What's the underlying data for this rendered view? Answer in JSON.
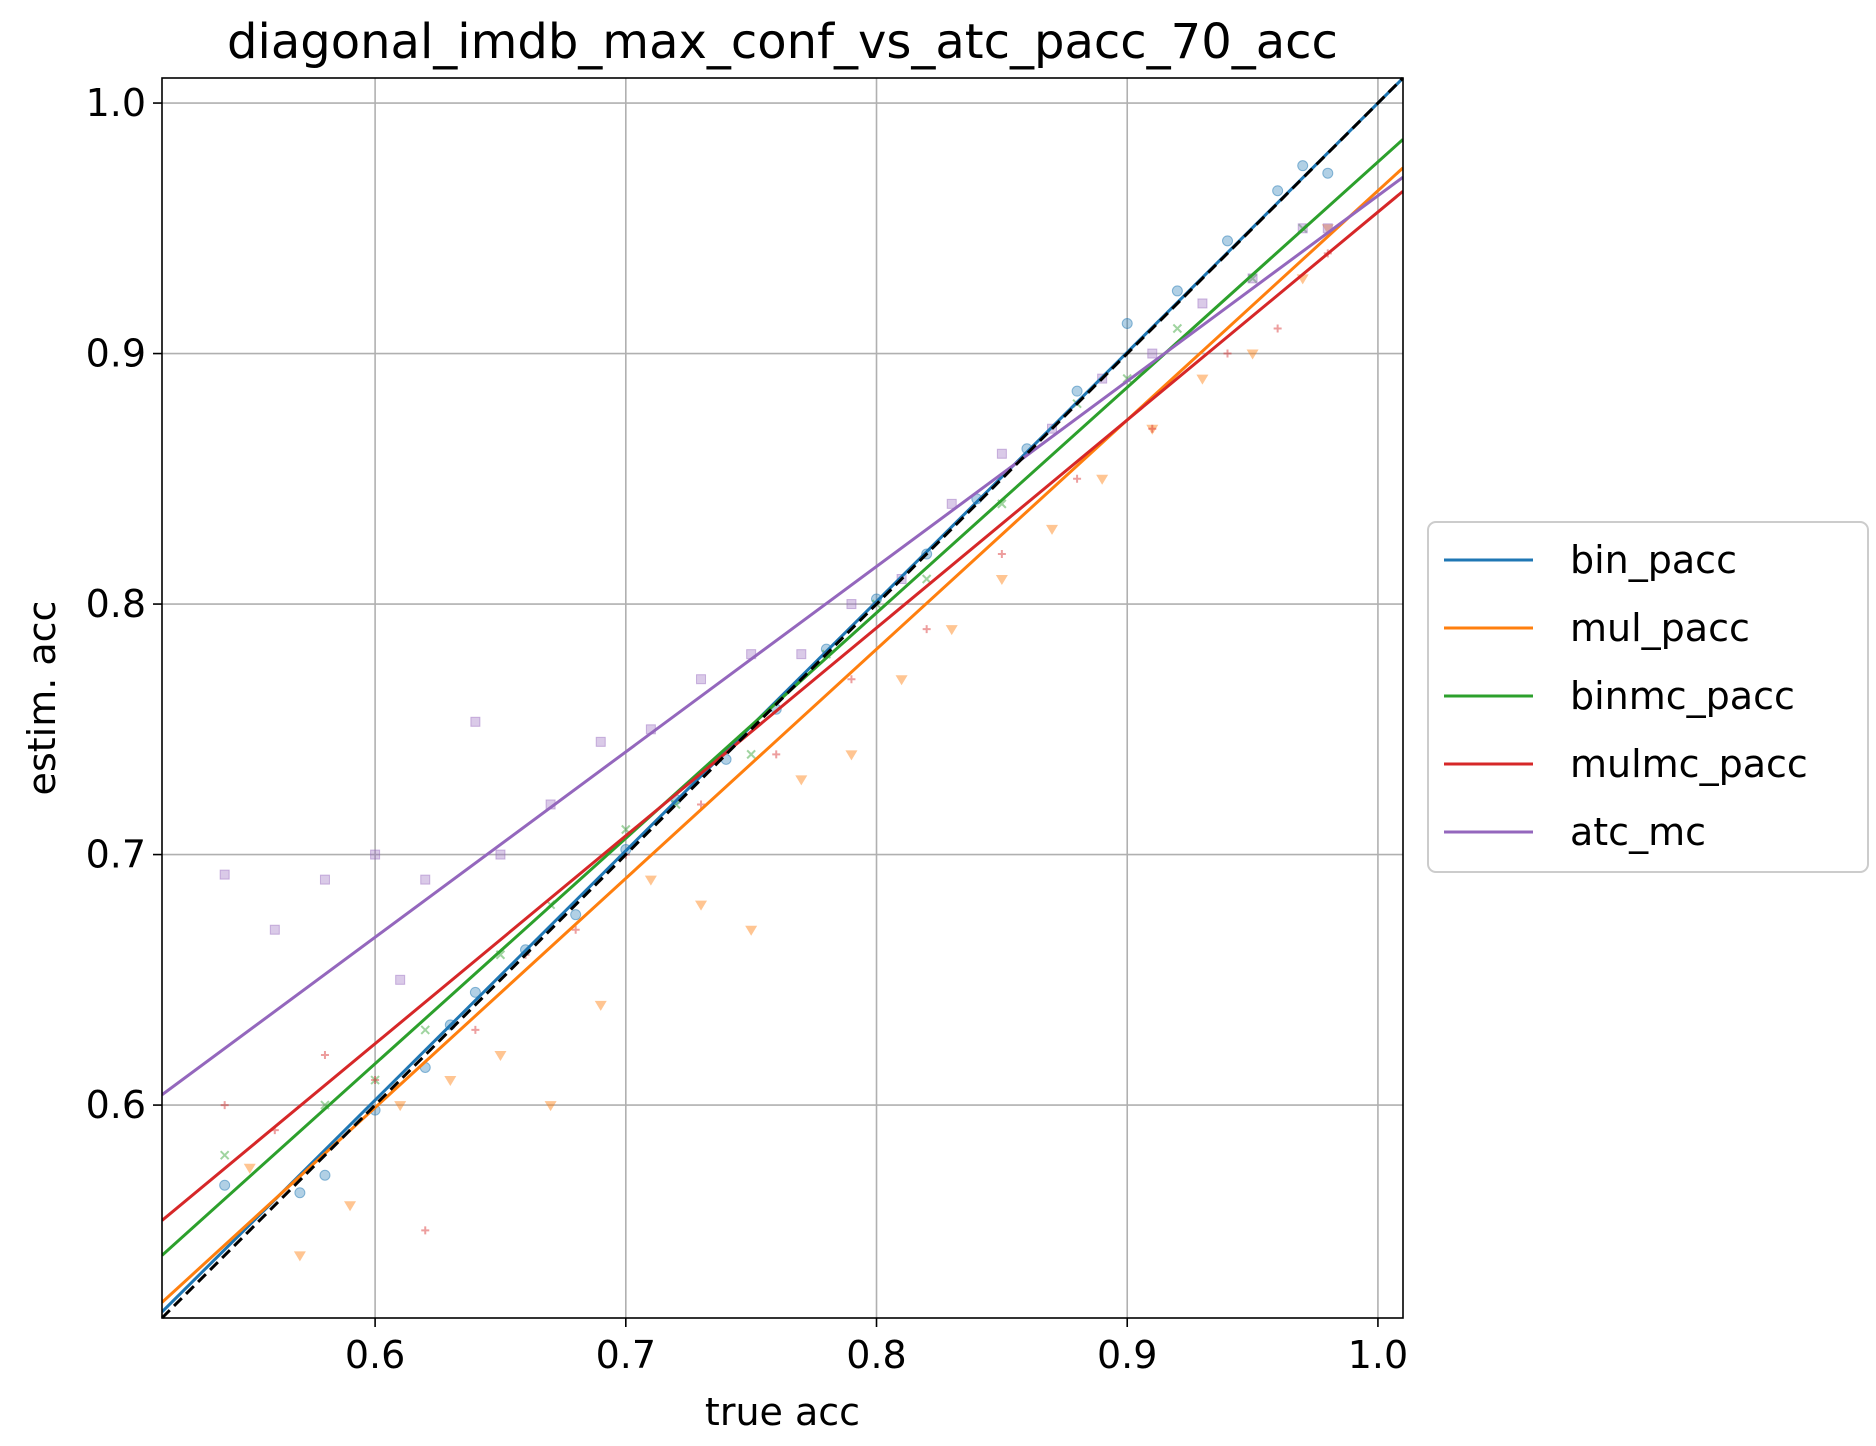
{
  "chart_data": {
    "type": "scatter",
    "title": "diagonal_imdb_max_conf_vs_atc_pacc_70_acc",
    "xlabel": "true acc",
    "ylabel": "estim. acc",
    "xlim": [
      0.515,
      1.01
    ],
    "ylim": [
      0.515,
      1.01
    ],
    "xticks": [
      "0.6",
      "0.7",
      "0.8",
      "0.9",
      "1.0"
    ],
    "yticks": [
      "0.6",
      "0.7",
      "0.8",
      "0.9",
      "1.0"
    ],
    "grid": true,
    "legend_position": "right-outside",
    "diagonal": {
      "style": "dashed",
      "color": "#000000",
      "from": [
        0.515,
        0.515
      ],
      "to": [
        1.01,
        1.01
      ]
    },
    "series": [
      {
        "name": "bin_pacc",
        "color": "#1f77b4",
        "marker": "circle",
        "fit": {
          "slope": 0.995,
          "intercept": 0.005
        },
        "points": [
          [
            0.54,
            0.568
          ],
          [
            0.57,
            0.565
          ],
          [
            0.58,
            0.572
          ],
          [
            0.6,
            0.598
          ],
          [
            0.62,
            0.615
          ],
          [
            0.63,
            0.632
          ],
          [
            0.64,
            0.645
          ],
          [
            0.66,
            0.662
          ],
          [
            0.68,
            0.676
          ],
          [
            0.7,
            0.702
          ],
          [
            0.72,
            0.722
          ],
          [
            0.74,
            0.738
          ],
          [
            0.76,
            0.758
          ],
          [
            0.78,
            0.782
          ],
          [
            0.8,
            0.802
          ],
          [
            0.82,
            0.82
          ],
          [
            0.84,
            0.842
          ],
          [
            0.86,
            0.862
          ],
          [
            0.88,
            0.885
          ],
          [
            0.9,
            0.912
          ],
          [
            0.92,
            0.925
          ],
          [
            0.94,
            0.945
          ],
          [
            0.96,
            0.965
          ],
          [
            0.97,
            0.975
          ],
          [
            0.98,
            0.972
          ]
        ]
      },
      {
        "name": "mul_pacc",
        "color": "#ff7f0e",
        "marker": "triangle-down",
        "fit": {
          "slope": 0.915,
          "intercept": 0.05
        },
        "points": [
          [
            0.55,
            0.575
          ],
          [
            0.57,
            0.54
          ],
          [
            0.59,
            0.56
          ],
          [
            0.61,
            0.6
          ],
          [
            0.63,
            0.61
          ],
          [
            0.65,
            0.62
          ],
          [
            0.67,
            0.6
          ],
          [
            0.69,
            0.64
          ],
          [
            0.71,
            0.69
          ],
          [
            0.73,
            0.68
          ],
          [
            0.75,
            0.67
          ],
          [
            0.77,
            0.73
          ],
          [
            0.79,
            0.74
          ],
          [
            0.81,
            0.77
          ],
          [
            0.83,
            0.79
          ],
          [
            0.85,
            0.81
          ],
          [
            0.87,
            0.83
          ],
          [
            0.89,
            0.85
          ],
          [
            0.91,
            0.87
          ],
          [
            0.93,
            0.89
          ],
          [
            0.95,
            0.9
          ],
          [
            0.97,
            0.93
          ],
          [
            0.98,
            0.95
          ]
        ]
      },
      {
        "name": "binmc_pacc",
        "color": "#2ca02c",
        "marker": "x",
        "fit": {
          "slope": 0.9,
          "intercept": 0.0765
        },
        "points": [
          [
            0.54,
            0.58
          ],
          [
            0.58,
            0.6
          ],
          [
            0.6,
            0.61
          ],
          [
            0.62,
            0.63
          ],
          [
            0.65,
            0.66
          ],
          [
            0.67,
            0.68
          ],
          [
            0.7,
            0.71
          ],
          [
            0.72,
            0.72
          ],
          [
            0.75,
            0.74
          ],
          [
            0.78,
            0.78
          ],
          [
            0.8,
            0.8
          ],
          [
            0.82,
            0.81
          ],
          [
            0.85,
            0.84
          ],
          [
            0.88,
            0.88
          ],
          [
            0.9,
            0.89
          ],
          [
            0.92,
            0.91
          ],
          [
            0.95,
            0.93
          ],
          [
            0.97,
            0.95
          ]
        ]
      },
      {
        "name": "mulmc_pacc",
        "color": "#d62728",
        "marker": "plus",
        "fit": {
          "slope": 0.83,
          "intercept": 0.1265
        },
        "points": [
          [
            0.54,
            0.6
          ],
          [
            0.56,
            0.59
          ],
          [
            0.58,
            0.62
          ],
          [
            0.6,
            0.61
          ],
          [
            0.62,
            0.55
          ],
          [
            0.64,
            0.63
          ],
          [
            0.66,
            0.66
          ],
          [
            0.68,
            0.67
          ],
          [
            0.7,
            0.7
          ],
          [
            0.73,
            0.72
          ],
          [
            0.76,
            0.74
          ],
          [
            0.79,
            0.77
          ],
          [
            0.82,
            0.79
          ],
          [
            0.85,
            0.82
          ],
          [
            0.88,
            0.85
          ],
          [
            0.91,
            0.87
          ],
          [
            0.94,
            0.9
          ],
          [
            0.96,
            0.91
          ],
          [
            0.98,
            0.94
          ]
        ]
      },
      {
        "name": "atc_mc",
        "color": "#9467bd",
        "marker": "square",
        "fit": {
          "slope": 0.74,
          "intercept": 0.223
        },
        "points": [
          [
            0.54,
            0.692
          ],
          [
            0.56,
            0.67
          ],
          [
            0.58,
            0.69
          ],
          [
            0.6,
            0.7
          ],
          [
            0.61,
            0.65
          ],
          [
            0.62,
            0.69
          ],
          [
            0.64,
            0.753
          ],
          [
            0.65,
            0.7
          ],
          [
            0.67,
            0.72
          ],
          [
            0.69,
            0.745
          ],
          [
            0.71,
            0.75
          ],
          [
            0.73,
            0.77
          ],
          [
            0.75,
            0.78
          ],
          [
            0.77,
            0.78
          ],
          [
            0.79,
            0.8
          ],
          [
            0.81,
            0.81
          ],
          [
            0.83,
            0.84
          ],
          [
            0.85,
            0.86
          ],
          [
            0.87,
            0.87
          ],
          [
            0.89,
            0.89
          ],
          [
            0.91,
            0.9
          ],
          [
            0.93,
            0.92
          ],
          [
            0.95,
            0.93
          ],
          [
            0.97,
            0.95
          ],
          [
            0.98,
            0.95
          ]
        ]
      }
    ]
  }
}
